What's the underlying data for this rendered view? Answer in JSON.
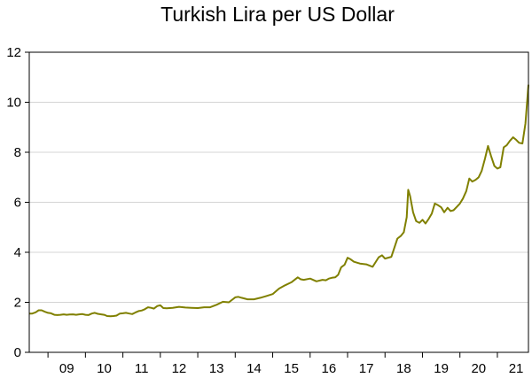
{
  "chart_data": {
    "type": "line",
    "title": "Turkish Lira per US Dollar",
    "xlabel": "",
    "ylabel": "",
    "ylim": [
      0,
      12
    ],
    "yticks": [
      0,
      2,
      4,
      6,
      8,
      10,
      12
    ],
    "xlim": [
      2008.5,
      2021.83
    ],
    "xtick_labels": [
      {
        "x": 2009,
        "label": "09"
      },
      {
        "x": 2010,
        "label": "10"
      },
      {
        "x": 2011,
        "label": "11"
      },
      {
        "x": 2012,
        "label": "12"
      },
      {
        "x": 2013,
        "label": "13"
      },
      {
        "x": 2014,
        "label": "14"
      },
      {
        "x": 2015,
        "label": "15"
      },
      {
        "x": 2016,
        "label": "16"
      },
      {
        "x": 2017,
        "label": "17"
      },
      {
        "x": 2018,
        "label": "18"
      },
      {
        "x": 2019,
        "label": "19"
      },
      {
        "x": 2020,
        "label": "20"
      },
      {
        "x": 2021,
        "label": "21"
      }
    ],
    "grid": true,
    "series": [
      {
        "color": "#808000",
        "x": [
          2008.5,
          2008.58,
          2008.67,
          2008.75,
          2008.83,
          2008.92,
          2009.0,
          2009.08,
          2009.17,
          2009.25,
          2009.33,
          2009.42,
          2009.5,
          2009.58,
          2009.67,
          2009.75,
          2009.83,
          2009.92,
          2010.0,
          2010.08,
          2010.17,
          2010.25,
          2010.33,
          2010.42,
          2010.5,
          2010.58,
          2010.67,
          2010.75,
          2010.83,
          2010.92,
          2011.0,
          2011.08,
          2011.17,
          2011.25,
          2011.33,
          2011.42,
          2011.5,
          2011.58,
          2011.67,
          2011.75,
          2011.83,
          2011.92,
          2012.0,
          2012.08,
          2012.17,
          2012.33,
          2012.5,
          2012.67,
          2012.83,
          2013.0,
          2013.17,
          2013.33,
          2013.5,
          2013.67,
          2013.83,
          2014.0,
          2014.08,
          2014.17,
          2014.33,
          2014.5,
          2014.67,
          2014.83,
          2015.0,
          2015.17,
          2015.33,
          2015.5,
          2015.67,
          2015.75,
          2015.83,
          2016.0,
          2016.17,
          2016.33,
          2016.42,
          2016.5,
          2016.58,
          2016.67,
          2016.75,
          2016.83,
          2016.92,
          2017.0,
          2017.08,
          2017.17,
          2017.33,
          2017.5,
          2017.67,
          2017.83,
          2017.92,
          2018.0,
          2018.17,
          2018.33,
          2018.42,
          2018.5,
          2018.58,
          2018.62,
          2018.67,
          2018.75,
          2018.83,
          2018.92,
          2019.0,
          2019.08,
          2019.17,
          2019.25,
          2019.33,
          2019.42,
          2019.5,
          2019.58,
          2019.67,
          2019.75,
          2019.83,
          2019.92,
          2020.0,
          2020.08,
          2020.17,
          2020.25,
          2020.33,
          2020.42,
          2020.5,
          2020.58,
          2020.67,
          2020.75,
          2020.83,
          2020.92,
          2021.0,
          2021.08,
          2021.17,
          2021.25,
          2021.33,
          2021.42,
          2021.5,
          2021.58,
          2021.67,
          2021.75,
          2021.83
        ],
        "values": [
          1.55,
          1.55,
          1.6,
          1.68,
          1.68,
          1.62,
          1.58,
          1.56,
          1.5,
          1.49,
          1.5,
          1.52,
          1.5,
          1.51,
          1.52,
          1.5,
          1.52,
          1.53,
          1.5,
          1.49,
          1.55,
          1.58,
          1.54,
          1.52,
          1.5,
          1.45,
          1.44,
          1.45,
          1.47,
          1.55,
          1.56,
          1.58,
          1.55,
          1.53,
          1.59,
          1.65,
          1.67,
          1.72,
          1.8,
          1.78,
          1.75,
          1.85,
          1.88,
          1.77,
          1.76,
          1.78,
          1.82,
          1.79,
          1.78,
          1.77,
          1.8,
          1.8,
          1.9,
          2.02,
          2.0,
          2.2,
          2.22,
          2.18,
          2.12,
          2.12,
          2.18,
          2.25,
          2.33,
          2.55,
          2.68,
          2.8,
          3.0,
          2.92,
          2.9,
          2.95,
          2.84,
          2.9,
          2.88,
          2.95,
          2.98,
          3.0,
          3.1,
          3.4,
          3.5,
          3.78,
          3.72,
          3.62,
          3.55,
          3.52,
          3.42,
          3.8,
          3.88,
          3.75,
          3.82,
          4.55,
          4.65,
          4.8,
          5.4,
          6.5,
          6.25,
          5.6,
          5.25,
          5.18,
          5.3,
          5.15,
          5.35,
          5.55,
          5.95,
          5.88,
          5.8,
          5.6,
          5.78,
          5.65,
          5.68,
          5.82,
          5.95,
          6.15,
          6.45,
          6.95,
          6.83,
          6.9,
          7.0,
          7.25,
          7.75,
          8.25,
          7.85,
          7.45,
          7.35,
          7.4,
          8.2,
          8.28,
          8.45,
          8.6,
          8.5,
          8.38,
          8.35,
          9.15,
          10.7
        ]
      }
    ]
  }
}
